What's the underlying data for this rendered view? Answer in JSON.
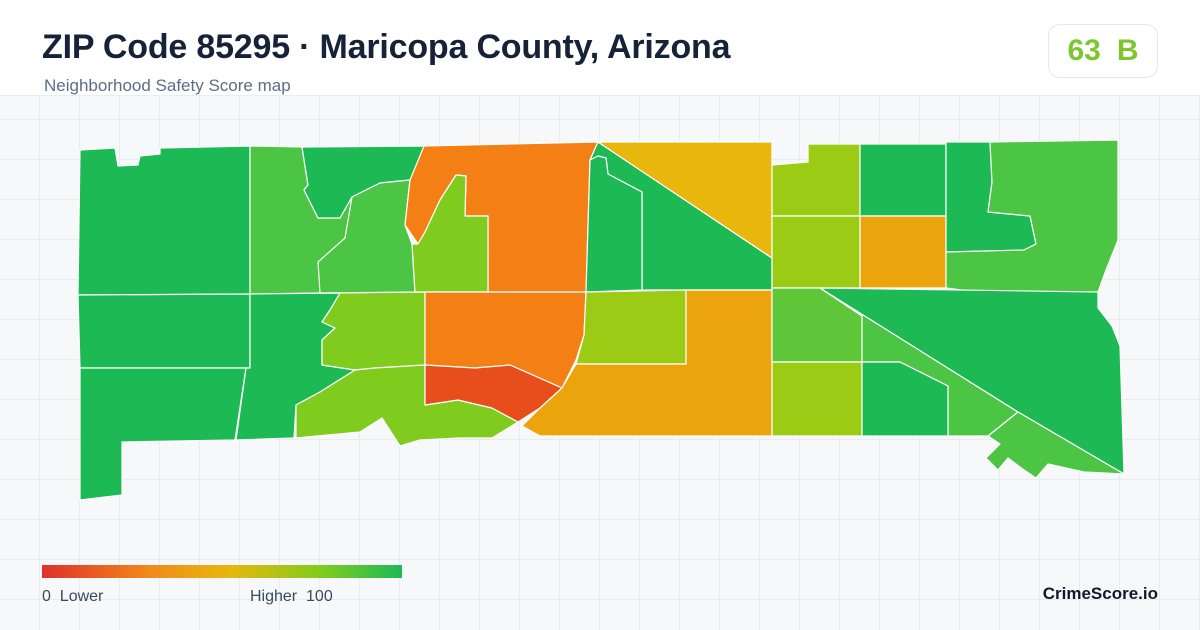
{
  "header": {
    "title": "ZIP Code 85295 · Maricopa County, Arizona",
    "subtitle": "Neighborhood Safety Score map"
  },
  "score": {
    "value": "63",
    "grade": "B",
    "color": "#7dc72e"
  },
  "legend": {
    "min": "0",
    "min_label": "Lower",
    "max_label": "Higher",
    "max": "100",
    "low_color": "#e0302a",
    "high_color": "#1db955"
  },
  "brand": "CrimeScore.io",
  "map": {
    "color_scale": [
      "#e0302a",
      "#f08a1a",
      "#e8b70e",
      "#7fcc1e",
      "#1db955"
    ]
  }
}
